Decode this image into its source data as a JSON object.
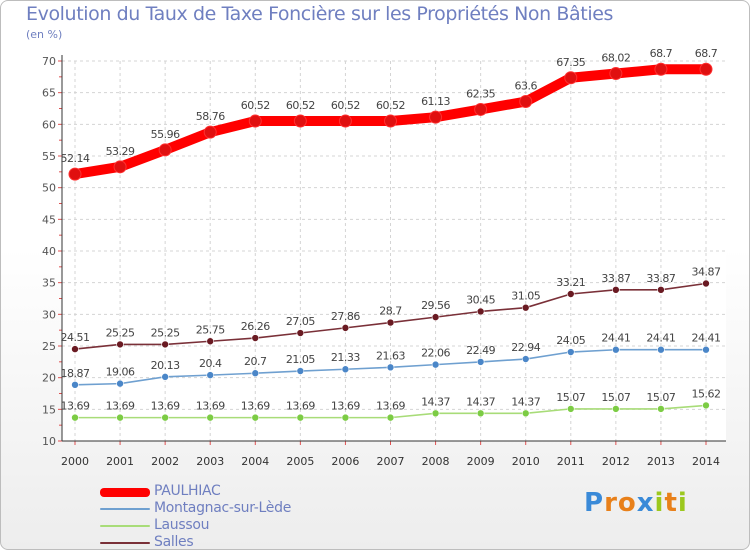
{
  "chart_data": {
    "type": "line",
    "title": "Evolution du Taux de Taxe Foncière sur les Propriétés Non Bâties",
    "subtitle": "(en %)",
    "xlabel": "",
    "ylabel": "(en %)",
    "ylim": [
      10,
      70
    ],
    "yticks": [
      10,
      15,
      20,
      25,
      30,
      35,
      40,
      45,
      50,
      55,
      60,
      65,
      70
    ],
    "grid": true,
    "legend_position": "bottom-left",
    "categories": [
      "2000",
      "2001",
      "2002",
      "2003",
      "2004",
      "2005",
      "2006",
      "2007",
      "2008",
      "2009",
      "2010",
      "2011",
      "2012",
      "2013",
      "2014"
    ],
    "series": [
      {
        "name": "PAULHIAC",
        "color": "#ff0000",
        "marker": "#e01010",
        "values": [
          52.14,
          53.29,
          55.96,
          58.76,
          60.52,
          60.52,
          60.52,
          60.52,
          61.13,
          62.35,
          63.6,
          67.35,
          68.02,
          68.7,
          68.7
        ],
        "labels": [
          "52.14",
          "53.29",
          "55.96",
          "58.76",
          "60.52",
          "60.52",
          "60.52",
          "60.52",
          "61.13",
          "62.35",
          "63.6",
          "67.35",
          "68.02",
          "68.7",
          "68.7"
        ]
      },
      {
        "name": "Montagnac-sur-Lède",
        "color": "#6fa0d0",
        "marker": "#4a86c8",
        "values": [
          18.87,
          19.06,
          20.13,
          20.4,
          20.7,
          21.05,
          21.33,
          21.63,
          22.06,
          22.49,
          22.94,
          24.05,
          24.41,
          24.41,
          24.41
        ],
        "labels": [
          "18.87",
          "19.06",
          "20.13",
          "20.4",
          "20.7",
          "21.05",
          "21.33",
          "21.63",
          "22.06",
          "22.49",
          "22.94",
          "24.05",
          "24.41",
          "24.41",
          "24.41"
        ]
      },
      {
        "name": "Laussou",
        "color": "#a8dc78",
        "marker": "#7ccc44",
        "values": [
          13.69,
          13.69,
          13.69,
          13.69,
          13.69,
          13.69,
          13.69,
          13.69,
          14.37,
          14.37,
          14.37,
          15.07,
          15.07,
          15.07,
          15.62
        ],
        "labels": [
          "13.69",
          "13.69",
          "13.69",
          "13.69",
          "13.69",
          "13.69",
          "13.69",
          "13.69",
          "14.37",
          "14.37",
          "14.37",
          "15.07",
          "15.07",
          "15.07",
          "15.62"
        ]
      },
      {
        "name": "Salles",
        "color": "#7a3038",
        "marker": "#6a1a22",
        "values": [
          24.51,
          25.25,
          25.25,
          25.75,
          26.26,
          27.05,
          27.86,
          28.7,
          29.56,
          30.45,
          31.05,
          33.21,
          33.87,
          33.87,
          34.87
        ],
        "labels": [
          "24.51",
          "25.25",
          "25.25",
          "25.75",
          "26.26",
          "27.05",
          "27.86",
          "28.7",
          "29.56",
          "30.45",
          "31.05",
          "33.21",
          "33.87",
          "33.87",
          "34.87"
        ]
      }
    ]
  },
  "logo": {
    "letters": [
      "P",
      "r",
      "o",
      "x",
      "i",
      "t",
      "i"
    ],
    "colors": [
      "#3a8ad8",
      "#e8801a",
      "#e8801a",
      "#3a8ad8",
      "#9cc81e",
      "#e8801a",
      "#9cc81e"
    ]
  }
}
